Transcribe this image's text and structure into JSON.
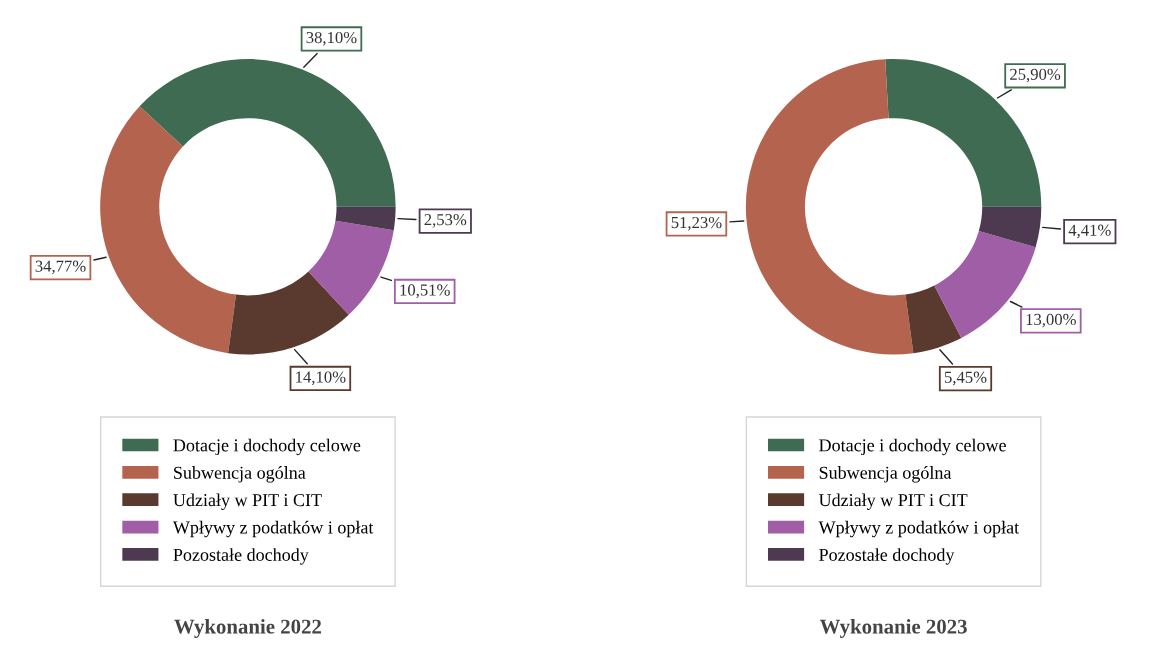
{
  "chart_data": [
    {
      "type": "donut",
      "title": "Wykonanie 2022",
      "categories": [
        "Dotacje i dochody celowe",
        "Subwencja ogólna",
        "Udziały w PIT i CIT",
        "Wpływy z podatków i opłat",
        "Pozostałe dochody"
      ],
      "values": [
        38.1,
        34.77,
        14.1,
        10.51,
        2.53
      ],
      "value_labels": [
        "38,10%",
        "34,77%",
        "14,10%",
        "10,51%",
        "2,53%"
      ],
      "colors": [
        "#3e6b52",
        "#b4634f",
        "#5a3a2e",
        "#a05ea6",
        "#4e3a50"
      ],
      "legend": "bottom"
    },
    {
      "type": "donut",
      "title": "Wykonanie 2023",
      "categories": [
        "Dotacje i dochody celowe",
        "Subwencja ogólna",
        "Udziały w PIT i CIT",
        "Wpływy z podatków i opłat",
        "Pozostałe dochody"
      ],
      "values": [
        25.9,
        51.23,
        5.45,
        13.0,
        4.41
      ],
      "value_labels": [
        "25,90%",
        "51,23%",
        "5,45%",
        "13,00%",
        "4,41%"
      ],
      "colors": [
        "#3e6b52",
        "#b4634f",
        "#5a3a2e",
        "#a05ea6",
        "#4e3a50"
      ],
      "legend": "bottom"
    }
  ]
}
